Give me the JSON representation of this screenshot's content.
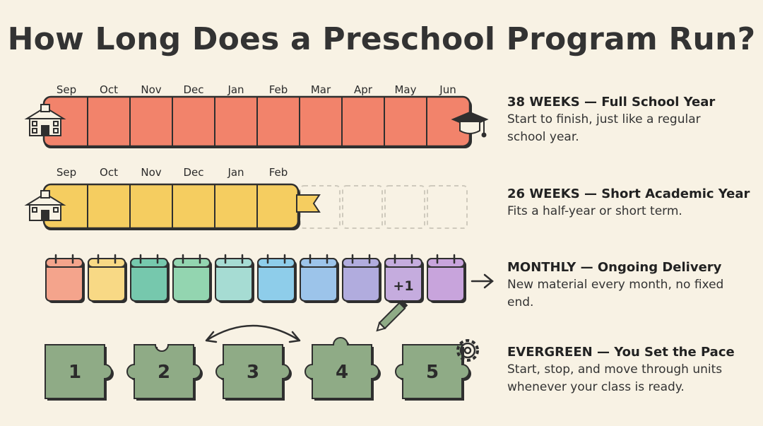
{
  "title": "How Long Does a Preschool Program Run?",
  "colors": {
    "background": "#f8f2e4",
    "full_year": "#f2836b",
    "short_year": "#f5cd60",
    "puzzle": "#8fab86",
    "months": [
      "#f4a48c",
      "#f8d985",
      "#76c8ad",
      "#93d5b0",
      "#a6dcd3",
      "#8ecdea",
      "#9cc4ea",
      "#b1acde",
      "#c5acde",
      "#c8a4dc"
    ]
  },
  "rows": [
    {
      "id": "full-year",
      "months": [
        "Sep",
        "Oct",
        "Nov",
        "Dec",
        "Jan",
        "Feb",
        "Mar",
        "Apr",
        "May",
        "Jun"
      ],
      "heading": "38 WEEKS — Full School Year",
      "description": "Start to finish, just like a regular school year."
    },
    {
      "id": "short-year",
      "months": [
        "Sep",
        "Oct",
        "Nov",
        "Dec",
        "Jan",
        "Feb"
      ],
      "heading": "26 WEEKS — Short Academic Year",
      "description": "Fits a half-year or short term."
    },
    {
      "id": "monthly",
      "badge": "+1",
      "heading": "MONTHLY — Ongoing Delivery",
      "description": "New material every month, no fixed end."
    },
    {
      "id": "evergreen",
      "pieces": [
        "1",
        "2",
        "3",
        "4",
        "5"
      ],
      "heading": "EVERGREEN — You Set the Pace",
      "description": "Start, stop, and move through units whenever your class is ready."
    }
  ]
}
